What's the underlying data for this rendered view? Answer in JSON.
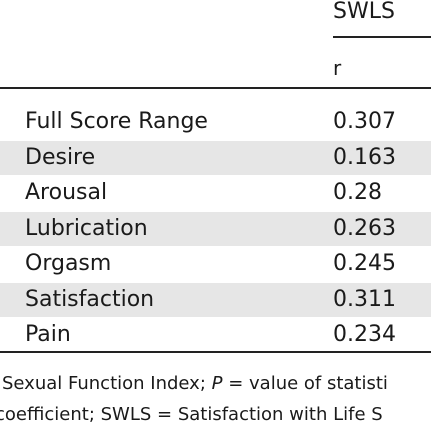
{
  "table": {
    "header": [
      "SWLS",
      "r"
    ],
    "rows": [
      [
        "Full Score Range",
        "0.307"
      ],
      [
        "Desire",
        "0.163"
      ],
      [
        "Arousal",
        "0.28"
      ],
      [
        "Lubrication",
        "0.263"
      ],
      [
        "Orgasm",
        "0.245"
      ],
      [
        "Satisfaction",
        "0.311"
      ],
      [
        "Pain",
        "0.234"
      ]
    ]
  },
  "footnote": [
    [
      "Sexual Function Index; ",
      "P",
      " = value of statisti"
    ],
    [
      "coefficient; SWLS = Satisfaction with Life S"
    ]
  ]
}
